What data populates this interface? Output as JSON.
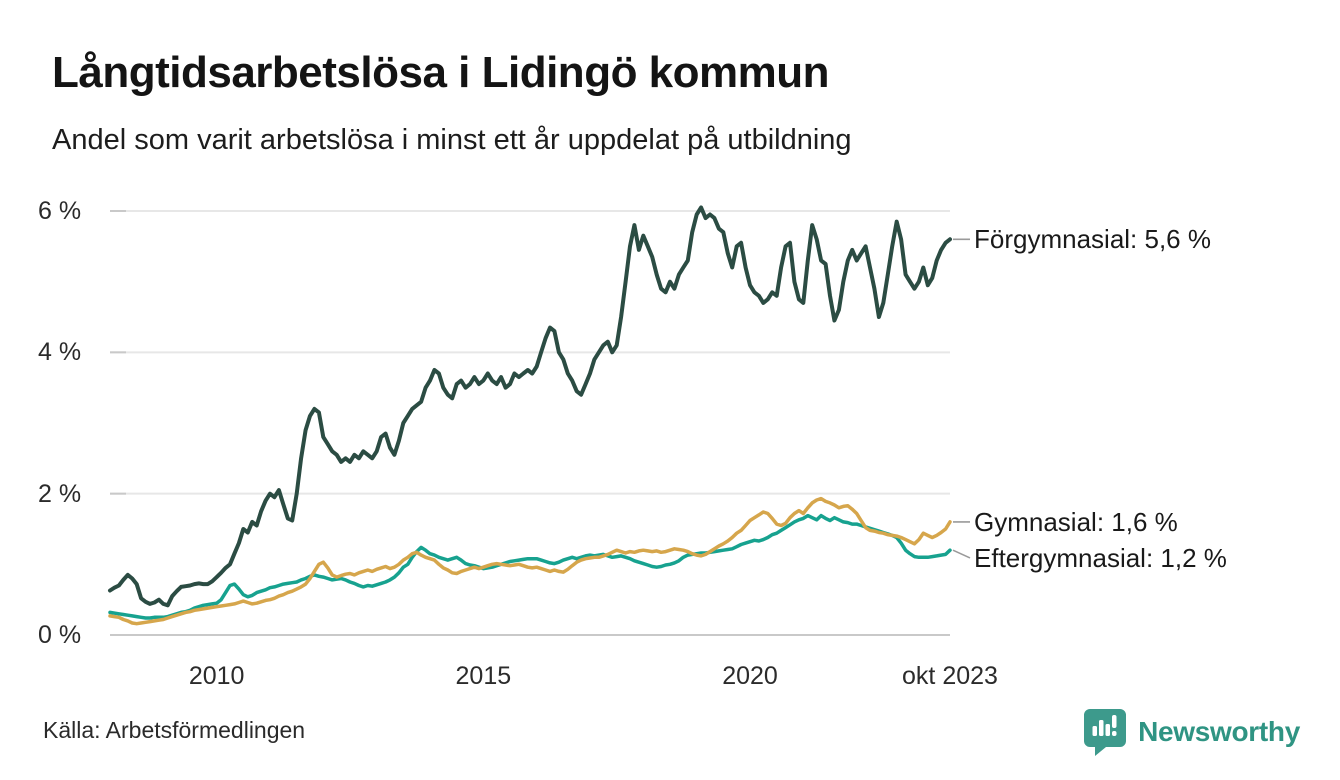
{
  "header": {
    "title": "Långtidsarbetslösa i Lidingö kommun",
    "subtitle": "Andel som varit arbetslösa i minst ett år uppdelat på utbildning"
  },
  "footer": {
    "source": "Källa: Arbetsförmedlingen",
    "brand_name": "Newsworthy",
    "brand_icon": "bar-chart-speech-bubble-icon",
    "brand_icon_color": "#3d9a8c",
    "brand_text_color": "#2f9483"
  },
  "colors": {
    "background": "#ffffff",
    "gridline": "#e7e7e7",
    "axis_line": "#c9c9c9",
    "connector": "#9a9a9a"
  },
  "chart_data": {
    "type": "line",
    "title": "Långtidsarbetslösa i Lidingö kommun",
    "subtitle": "Andel som varit arbetslösa i minst ett år uppdelat på utbildning",
    "unit": "%",
    "grid": true,
    "legend_position": "end-of-line-labels-right",
    "x_axis": {
      "start": "2008-01",
      "end": "2023-10",
      "points_per_series": 190,
      "ticks": [
        {
          "label": "2010",
          "month_index": 24
        },
        {
          "label": "2015",
          "month_index": 84
        },
        {
          "label": "2020",
          "month_index": 144
        },
        {
          "label": "okt 2023",
          "month_index": 189
        }
      ]
    },
    "y_axis": {
      "range": [
        0,
        6.3
      ],
      "ticks": [
        {
          "label": "0 %",
          "value": 0
        },
        {
          "label": "2 %",
          "value": 2
        },
        {
          "label": "4 %",
          "value": 4
        },
        {
          "label": "6 %",
          "value": 6
        }
      ]
    },
    "series": [
      {
        "name": "Eftergymnasial",
        "end_label": "Eftergymnasial: 1,2 %",
        "end_value": 1.2,
        "color": "#17a28f",
        "stroke_width": 3.5,
        "values": [
          0.32,
          0.31,
          0.3,
          0.29,
          0.28,
          0.27,
          0.26,
          0.25,
          0.24,
          0.24,
          0.25,
          0.25,
          0.25,
          0.26,
          0.28,
          0.3,
          0.32,
          0.33,
          0.35,
          0.38,
          0.4,
          0.42,
          0.43,
          0.44,
          0.45,
          0.5,
          0.6,
          0.7,
          0.72,
          0.65,
          0.57,
          0.54,
          0.56,
          0.6,
          0.62,
          0.64,
          0.67,
          0.68,
          0.7,
          0.72,
          0.73,
          0.74,
          0.75,
          0.78,
          0.8,
          0.83,
          0.85,
          0.83,
          0.82,
          0.8,
          0.78,
          0.79,
          0.8,
          0.78,
          0.75,
          0.73,
          0.7,
          0.68,
          0.7,
          0.69,
          0.71,
          0.73,
          0.75,
          0.78,
          0.82,
          0.88,
          0.96,
          1.0,
          1.1,
          1.18,
          1.24,
          1.2,
          1.15,
          1.13,
          1.1,
          1.08,
          1.06,
          1.08,
          1.1,
          1.06,
          1.01,
          0.99,
          0.98,
          0.96,
          0.94,
          0.95,
          0.96,
          0.98,
          1.0,
          1.02,
          1.04,
          1.05,
          1.06,
          1.07,
          1.08,
          1.08,
          1.08,
          1.06,
          1.04,
          1.02,
          1.01,
          1.03,
          1.06,
          1.08,
          1.1,
          1.08,
          1.1,
          1.12,
          1.13,
          1.12,
          1.13,
          1.14,
          1.12,
          1.1,
          1.11,
          1.12,
          1.1,
          1.08,
          1.05,
          1.03,
          1.01,
          0.99,
          0.97,
          0.96,
          0.97,
          0.99,
          1.0,
          1.02,
          1.05,
          1.1,
          1.13,
          1.14,
          1.15,
          1.16,
          1.16,
          1.17,
          1.18,
          1.19,
          1.2,
          1.21,
          1.22,
          1.25,
          1.28,
          1.3,
          1.32,
          1.34,
          1.33,
          1.35,
          1.38,
          1.42,
          1.44,
          1.48,
          1.52,
          1.56,
          1.6,
          1.63,
          1.65,
          1.69,
          1.66,
          1.63,
          1.69,
          1.65,
          1.62,
          1.66,
          1.63,
          1.6,
          1.59,
          1.57,
          1.57,
          1.55,
          1.53,
          1.51,
          1.49,
          1.47,
          1.45,
          1.43,
          1.41,
          1.38,
          1.3,
          1.2,
          1.15,
          1.11,
          1.1,
          1.1,
          1.1,
          1.11,
          1.12,
          1.13,
          1.14,
          1.2
        ]
      },
      {
        "name": "Gymnasial",
        "end_label": "Gymnasial: 1,6 %",
        "end_value": 1.6,
        "color": "#d6a64c",
        "stroke_width": 3.5,
        "values": [
          0.27,
          0.26,
          0.25,
          0.22,
          0.2,
          0.17,
          0.16,
          0.17,
          0.18,
          0.19,
          0.2,
          0.21,
          0.22,
          0.24,
          0.26,
          0.28,
          0.3,
          0.32,
          0.33,
          0.35,
          0.36,
          0.37,
          0.38,
          0.39,
          0.4,
          0.41,
          0.42,
          0.43,
          0.44,
          0.46,
          0.48,
          0.46,
          0.44,
          0.45,
          0.47,
          0.49,
          0.5,
          0.52,
          0.55,
          0.57,
          0.6,
          0.62,
          0.65,
          0.68,
          0.72,
          0.8,
          0.9,
          1.0,
          1.03,
          0.95,
          0.85,
          0.82,
          0.84,
          0.86,
          0.87,
          0.85,
          0.88,
          0.9,
          0.92,
          0.9,
          0.93,
          0.95,
          0.97,
          0.94,
          0.96,
          1.0,
          1.06,
          1.1,
          1.15,
          1.17,
          1.13,
          1.1,
          1.08,
          1.06,
          1.0,
          0.95,
          0.92,
          0.88,
          0.87,
          0.9,
          0.92,
          0.94,
          0.96,
          0.94,
          0.96,
          0.98,
          1.0,
          1.01,
          1.0,
          0.99,
          0.98,
          0.99,
          1.0,
          0.98,
          0.96,
          0.95,
          0.96,
          0.94,
          0.92,
          0.9,
          0.92,
          0.9,
          0.89,
          0.93,
          0.98,
          1.03,
          1.06,
          1.08,
          1.09,
          1.1,
          1.1,
          1.12,
          1.14,
          1.17,
          1.2,
          1.18,
          1.16,
          1.18,
          1.17,
          1.19,
          1.2,
          1.19,
          1.18,
          1.19,
          1.17,
          1.18,
          1.2,
          1.22,
          1.21,
          1.2,
          1.18,
          1.15,
          1.13,
          1.12,
          1.14,
          1.18,
          1.22,
          1.26,
          1.29,
          1.33,
          1.38,
          1.44,
          1.48,
          1.55,
          1.62,
          1.66,
          1.7,
          1.74,
          1.72,
          1.65,
          1.57,
          1.55,
          1.58,
          1.66,
          1.72,
          1.76,
          1.72,
          1.8,
          1.87,
          1.91,
          1.93,
          1.89,
          1.87,
          1.84,
          1.8,
          1.82,
          1.83,
          1.78,
          1.72,
          1.62,
          1.52,
          1.48,
          1.47,
          1.45,
          1.44,
          1.42,
          1.41,
          1.4,
          1.38,
          1.35,
          1.32,
          1.29,
          1.35,
          1.44,
          1.41,
          1.38,
          1.41,
          1.45,
          1.5,
          1.6
        ]
      },
      {
        "name": "Förgymnasial",
        "end_label": "Förgymnasial: 5,6 %",
        "end_value": 5.6,
        "color": "#2b4c43",
        "stroke_width": 4,
        "values": [
          0.63,
          0.67,
          0.7,
          0.78,
          0.85,
          0.8,
          0.72,
          0.52,
          0.47,
          0.44,
          0.46,
          0.5,
          0.44,
          0.42,
          0.55,
          0.62,
          0.68,
          0.69,
          0.7,
          0.72,
          0.73,
          0.72,
          0.72,
          0.76,
          0.82,
          0.88,
          0.95,
          1.0,
          1.15,
          1.3,
          1.5,
          1.45,
          1.6,
          1.55,
          1.75,
          1.9,
          2.0,
          1.95,
          2.05,
          1.85,
          1.65,
          1.62,
          2.0,
          2.5,
          2.9,
          3.1,
          3.2,
          3.15,
          2.8,
          2.7,
          2.6,
          2.55,
          2.45,
          2.5,
          2.45,
          2.55,
          2.5,
          2.6,
          2.55,
          2.5,
          2.6,
          2.8,
          2.85,
          2.65,
          2.55,
          2.75,
          3.0,
          3.1,
          3.2,
          3.25,
          3.3,
          3.5,
          3.6,
          3.75,
          3.7,
          3.5,
          3.4,
          3.35,
          3.55,
          3.6,
          3.5,
          3.55,
          3.65,
          3.55,
          3.6,
          3.7,
          3.6,
          3.55,
          3.65,
          3.5,
          3.55,
          3.7,
          3.65,
          3.7,
          3.75,
          3.7,
          3.8,
          4.0,
          4.2,
          4.35,
          4.3,
          4.0,
          3.9,
          3.7,
          3.6,
          3.45,
          3.4,
          3.55,
          3.7,
          3.9,
          4.0,
          4.1,
          4.15,
          4.0,
          4.1,
          4.5,
          5.0,
          5.5,
          5.8,
          5.45,
          5.65,
          5.5,
          5.35,
          5.1,
          4.9,
          4.85,
          5.0,
          4.9,
          5.1,
          5.2,
          5.3,
          5.7,
          5.95,
          6.05,
          5.9,
          5.95,
          5.9,
          5.75,
          5.7,
          5.4,
          5.2,
          5.5,
          5.55,
          5.2,
          4.95,
          4.85,
          4.8,
          4.7,
          4.75,
          4.85,
          4.8,
          5.2,
          5.5,
          5.55,
          5.0,
          4.75,
          4.7,
          5.3,
          5.8,
          5.6,
          5.3,
          5.25,
          4.8,
          4.45,
          4.6,
          5.0,
          5.3,
          5.45,
          5.3,
          5.4,
          5.5,
          5.2,
          4.9,
          4.5,
          4.7,
          5.1,
          5.5,
          5.85,
          5.6,
          5.1,
          5.0,
          4.9,
          5.0,
          5.2,
          4.95,
          5.05,
          5.3,
          5.45,
          5.55,
          5.6
        ]
      }
    ]
  }
}
